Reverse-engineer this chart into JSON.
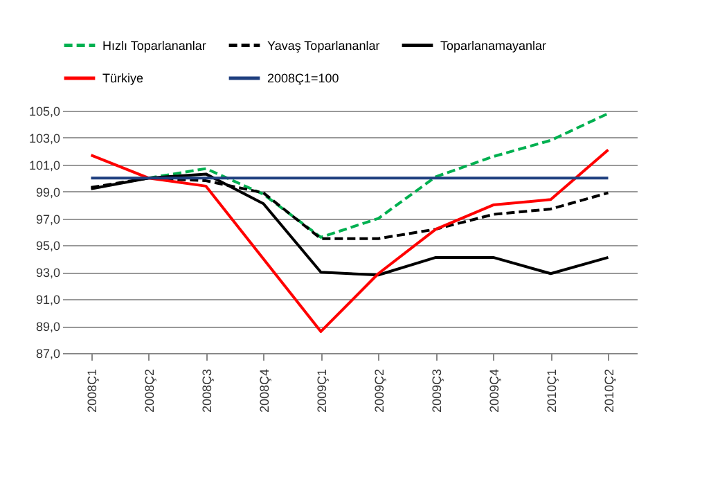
{
  "chart_data": {
    "type": "line",
    "categories": [
      "2008Ç1",
      "2008Ç2",
      "2008Ç3",
      "2008Ç4",
      "2009Ç1",
      "2009Ç2",
      "2009Ç3",
      "2009Ç4",
      "2010Ç1",
      "2010Ç2"
    ],
    "series": [
      {
        "name": "Hızlı Toparlananlar",
        "color": "#00b050",
        "line_style": "dashed",
        "values": [
          null,
          100.0,
          100.7,
          98.8,
          95.6,
          97.0,
          100.1,
          101.6,
          102.8,
          104.8
        ]
      },
      {
        "name": "Yavaş Toparlananlar",
        "color": "#000000",
        "line_style": "dashed",
        "values": [
          99.3,
          100.0,
          99.8,
          98.9,
          95.5,
          95.5,
          96.2,
          97.3,
          97.7,
          98.9
        ]
      },
      {
        "name": "Toparlanamayanlar",
        "color": "#000000",
        "line_style": "solid",
        "values": [
          99.2,
          100.0,
          100.3,
          98.1,
          93.0,
          92.8,
          94.1,
          94.1,
          92.9,
          94.1
        ]
      },
      {
        "name": "Türkiye",
        "color": "#ff0000",
        "line_style": "solid",
        "values": [
          101.7,
          100.0,
          99.4,
          94.0,
          88.6,
          92.9,
          96.2,
          98.0,
          98.4,
          102.1
        ]
      },
      {
        "name": "2008Ç1=100",
        "color": "#1f3f7f",
        "line_style": "solid",
        "values": [
          100,
          100,
          100,
          100,
          100,
          100,
          100,
          100,
          100,
          100
        ]
      }
    ],
    "ylim": [
      87,
      105
    ],
    "yticks": [
      {
        "value": 87,
        "label": "87,0"
      },
      {
        "value": 89,
        "label": "89,0"
      },
      {
        "value": 91,
        "label": "91,0"
      },
      {
        "value": 93,
        "label": "93,0"
      },
      {
        "value": 95,
        "label": "95,0"
      },
      {
        "value": 97,
        "label": "97,0"
      },
      {
        "value": 99,
        "label": "99,0"
      },
      {
        "value": 101,
        "label": "101,0"
      },
      {
        "value": 103,
        "label": "103,0"
      },
      {
        "value": 105,
        "label": "105,0"
      }
    ],
    "grid": "y",
    "legend": "top"
  }
}
